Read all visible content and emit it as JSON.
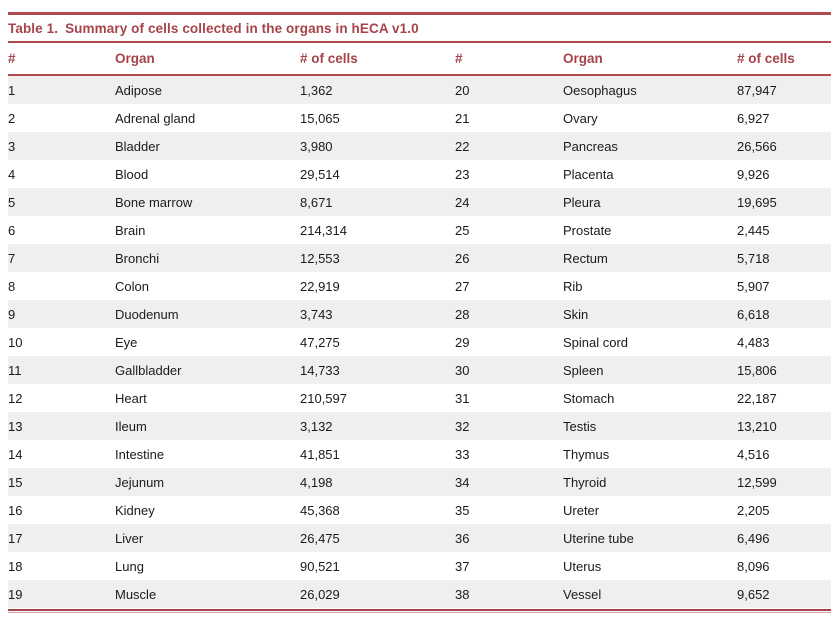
{
  "colors": {
    "accent": "#A6444A",
    "rule": "#AE4A50",
    "stripe": "#EFEFEF",
    "body_text": "#1B1B1B"
  },
  "table": {
    "title_label": "Table 1.",
    "title_text": "Summary of cells collected in the organs in hECA v1.0",
    "columns": [
      "#",
      "Organ",
      "# of cells",
      "#",
      "Organ",
      "# of cells"
    ],
    "rows": [
      [
        "1",
        "Adipose",
        "1,362",
        "20",
        "Oesophagus",
        "87,947"
      ],
      [
        "2",
        "Adrenal gland",
        "15,065",
        "21",
        "Ovary",
        "6,927"
      ],
      [
        "3",
        "Bladder",
        "3,980",
        "22",
        "Pancreas",
        "26,566"
      ],
      [
        "4",
        "Blood",
        "29,514",
        "23",
        "Placenta",
        "9,926"
      ],
      [
        "5",
        "Bone marrow",
        "8,671",
        "24",
        "Pleura",
        "19,695"
      ],
      [
        "6",
        "Brain",
        "214,314",
        "25",
        "Prostate",
        "2,445"
      ],
      [
        "7",
        "Bronchi",
        "12,553",
        "26",
        "Rectum",
        "5,718"
      ],
      [
        "8",
        "Colon",
        "22,919",
        "27",
        "Rib",
        "5,907"
      ],
      [
        "9",
        "Duodenum",
        "3,743",
        "28",
        "Skin",
        "6,618"
      ],
      [
        "10",
        "Eye",
        "47,275",
        "29",
        "Spinal cord",
        "4,483"
      ],
      [
        "11",
        "Gallbladder",
        "14,733",
        "30",
        "Spleen",
        "15,806"
      ],
      [
        "12",
        "Heart",
        "210,597",
        "31",
        "Stomach",
        "22,187"
      ],
      [
        "13",
        "Ileum",
        "3,132",
        "32",
        "Testis",
        "13,210"
      ],
      [
        "14",
        "Intestine",
        "41,851",
        "33",
        "Thymus",
        "4,516"
      ],
      [
        "15",
        "Jejunum",
        "4,198",
        "34",
        "Thyroid",
        "12,599"
      ],
      [
        "16",
        "Kidney",
        "45,368",
        "35",
        "Ureter",
        "2,205"
      ],
      [
        "17",
        "Liver",
        "26,475",
        "36",
        "Uterine tube",
        "6,496"
      ],
      [
        "18",
        "Lung",
        "90,521",
        "37",
        "Uterus",
        "8,096"
      ],
      [
        "19",
        "Muscle",
        "26,029",
        "38",
        "Vessel",
        "9,652"
      ]
    ]
  }
}
